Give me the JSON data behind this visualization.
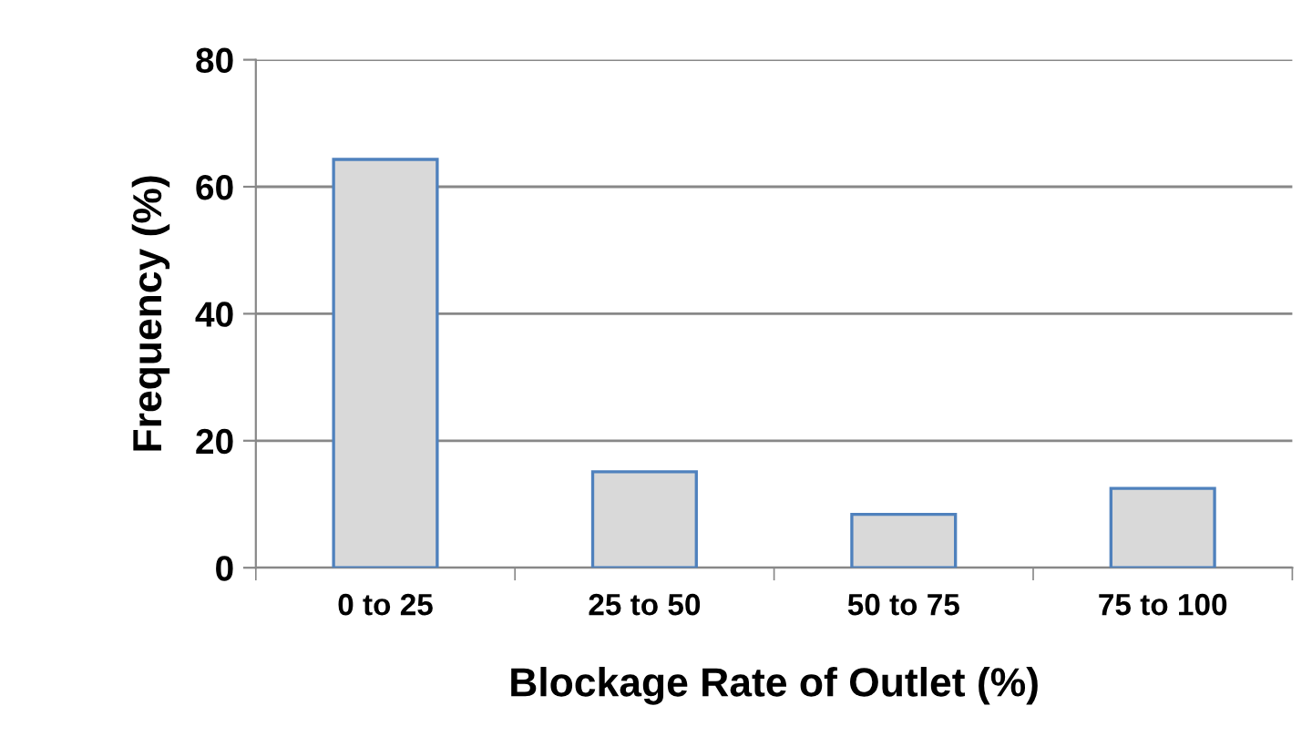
{
  "chart_data": {
    "type": "bar",
    "xlabel": "Blockage Rate of Outlet (%)",
    "ylabel": "Frequency (%)",
    "categories": [
      "0 to 25",
      "25 to 50",
      "50 to 75",
      "75 to 100"
    ],
    "values": [
      64.3,
      15.1,
      8.4,
      12.5
    ],
    "color": "#d9d9d9",
    "ylim": [
      0,
      80
    ],
    "yticks": [
      0,
      20,
      40,
      60,
      80
    ],
    "grid": "y",
    "legend": false
  }
}
